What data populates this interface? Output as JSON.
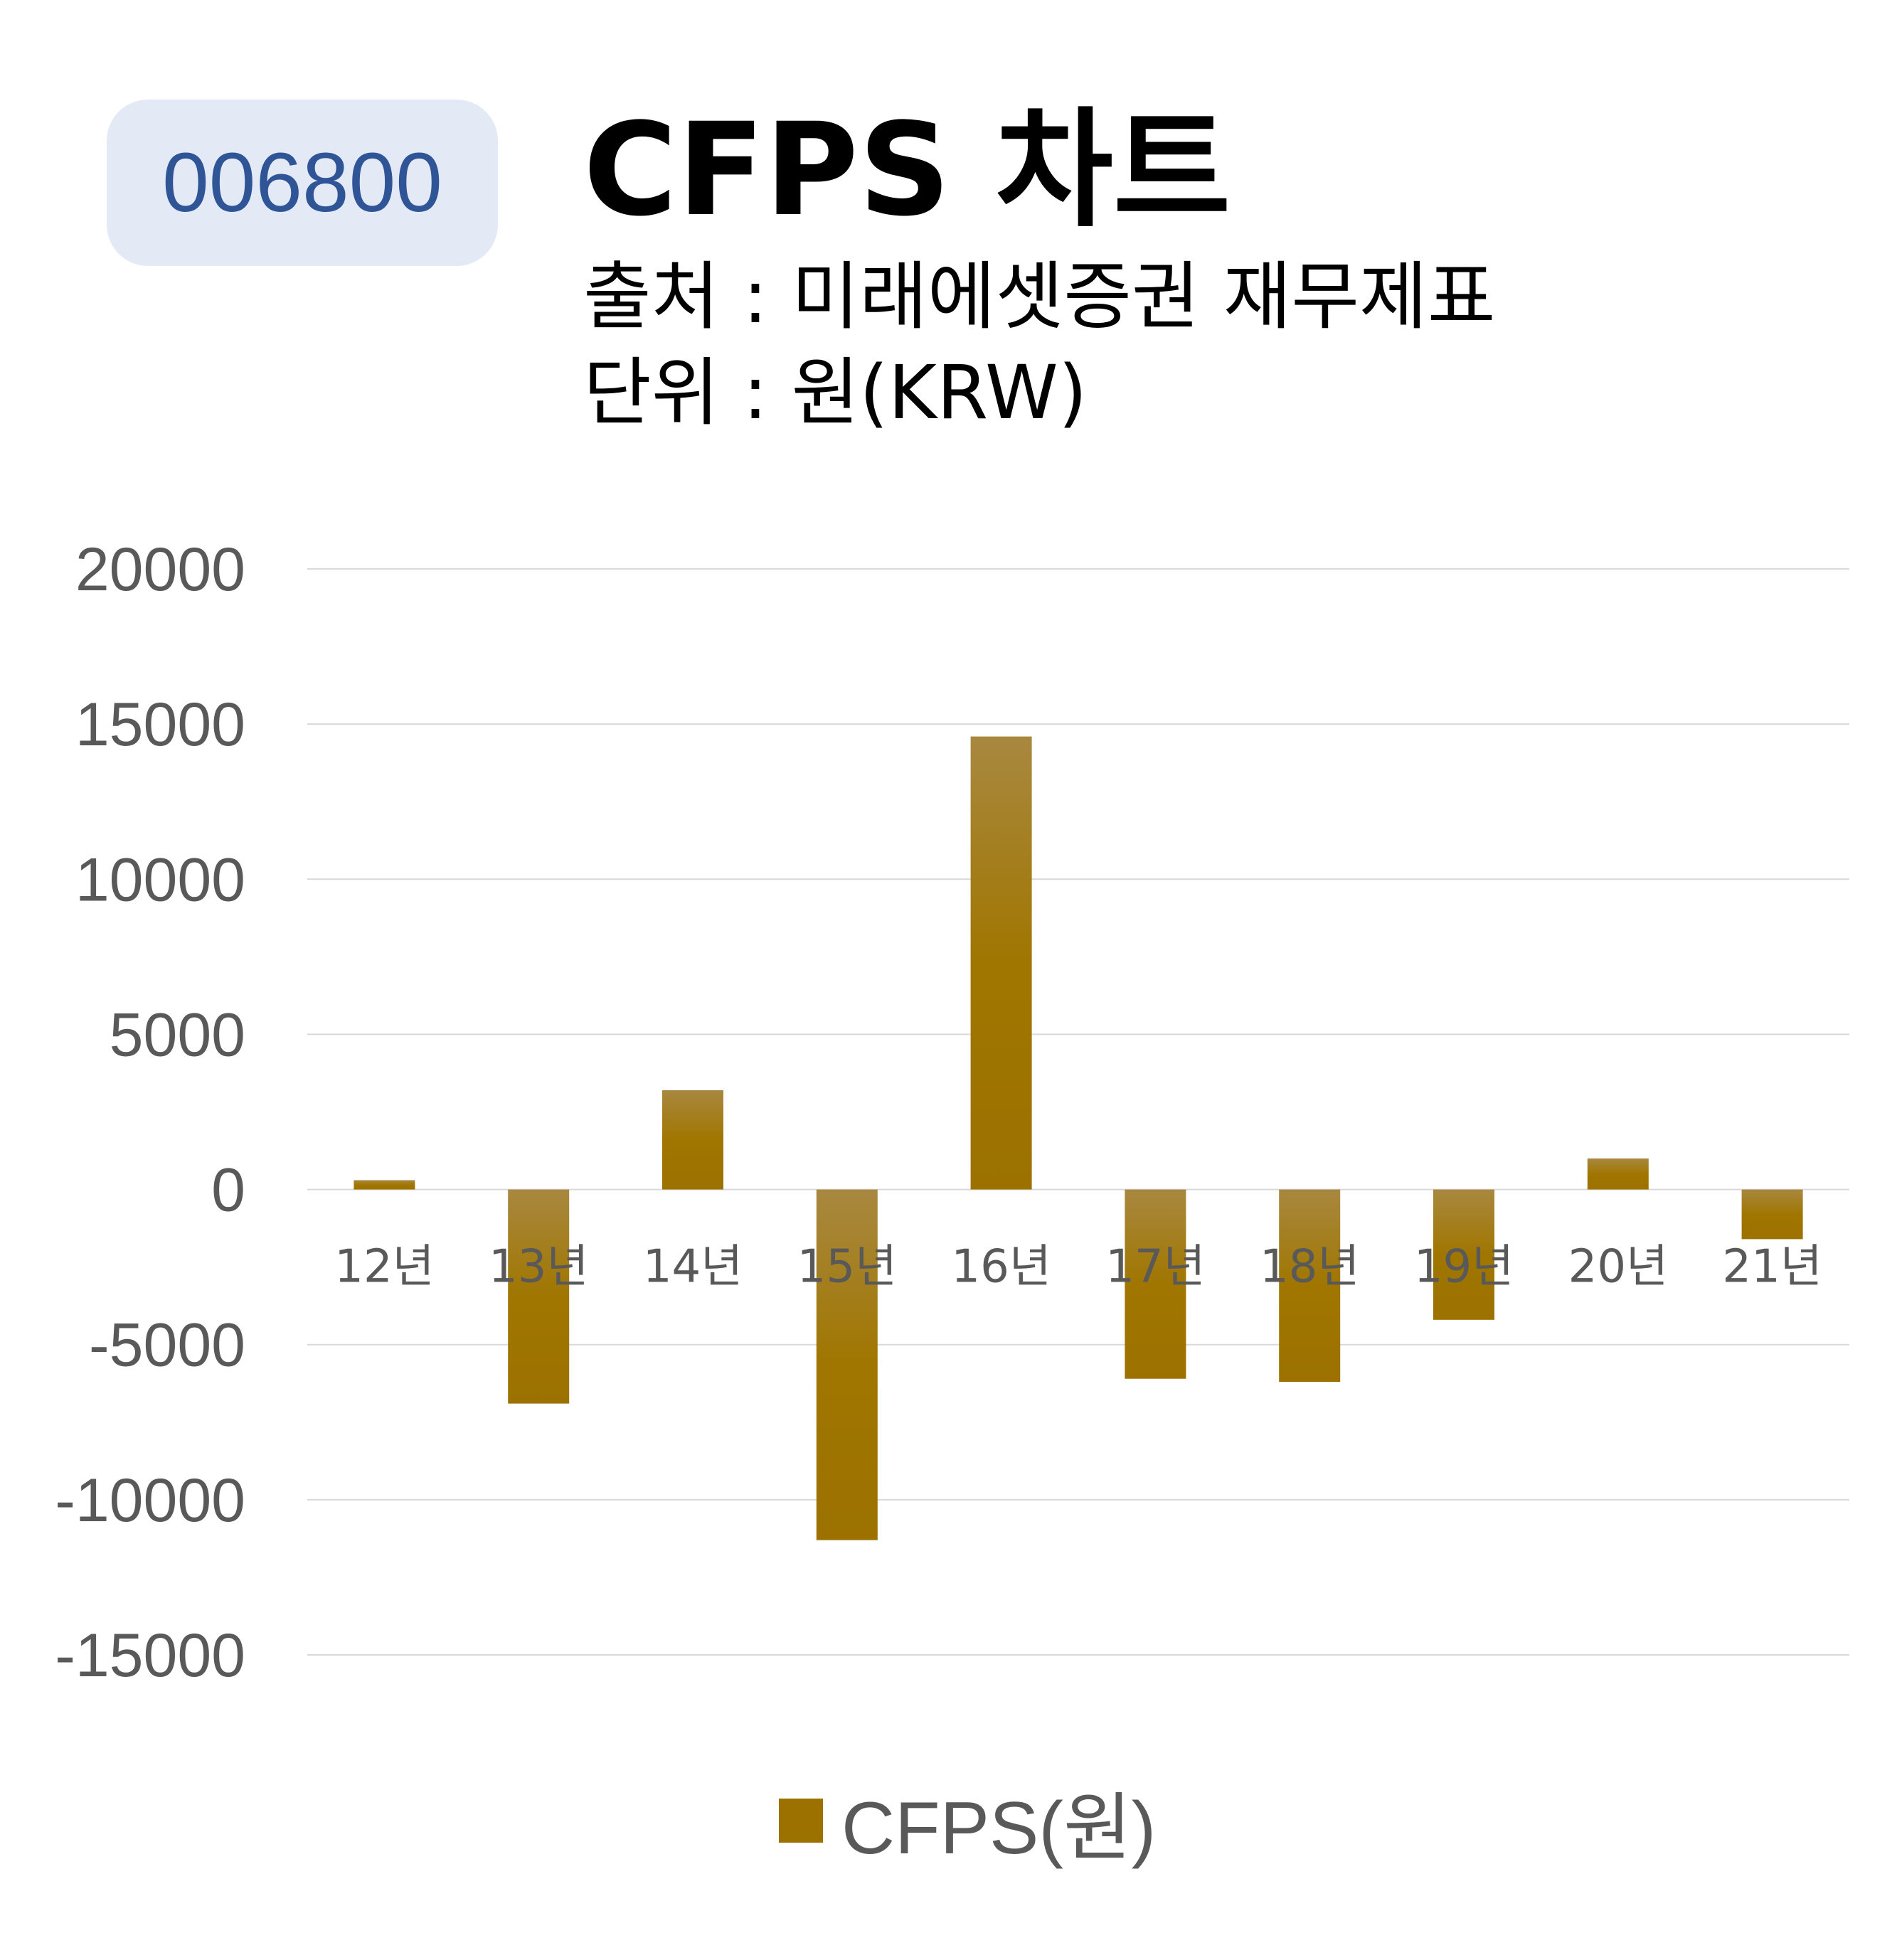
{
  "header": {
    "code": "006800",
    "title": "CFPS 차트",
    "source": "출처 : 미래에셋증권 재무제표",
    "unit": "단위 : 원(KRW)"
  },
  "colors": {
    "bar": "#9c7100",
    "bar_top": "#a88840",
    "grid": "#d9d9d9",
    "tick_text": "#595959",
    "badge_bg": "#e4eaf5",
    "badge_text": "#2f5597"
  },
  "chart_data": {
    "type": "bar",
    "categories": [
      "12년",
      "13년",
      "14년",
      "15년",
      "16년",
      "17년",
      "18년",
      "19년",
      "20년",
      "21년"
    ],
    "series": [
      {
        "name": "CFPS(원)",
        "values": [
          300,
          -6900,
          3200,
          -11300,
          14600,
          -6100,
          -6200,
          -4200,
          1000,
          -1600
        ]
      }
    ],
    "ylim": [
      -15000,
      20000
    ],
    "yticks": [
      20000,
      15000,
      10000,
      5000,
      0,
      -5000,
      -10000,
      -15000
    ],
    "grid": true,
    "legend": "bottom"
  }
}
